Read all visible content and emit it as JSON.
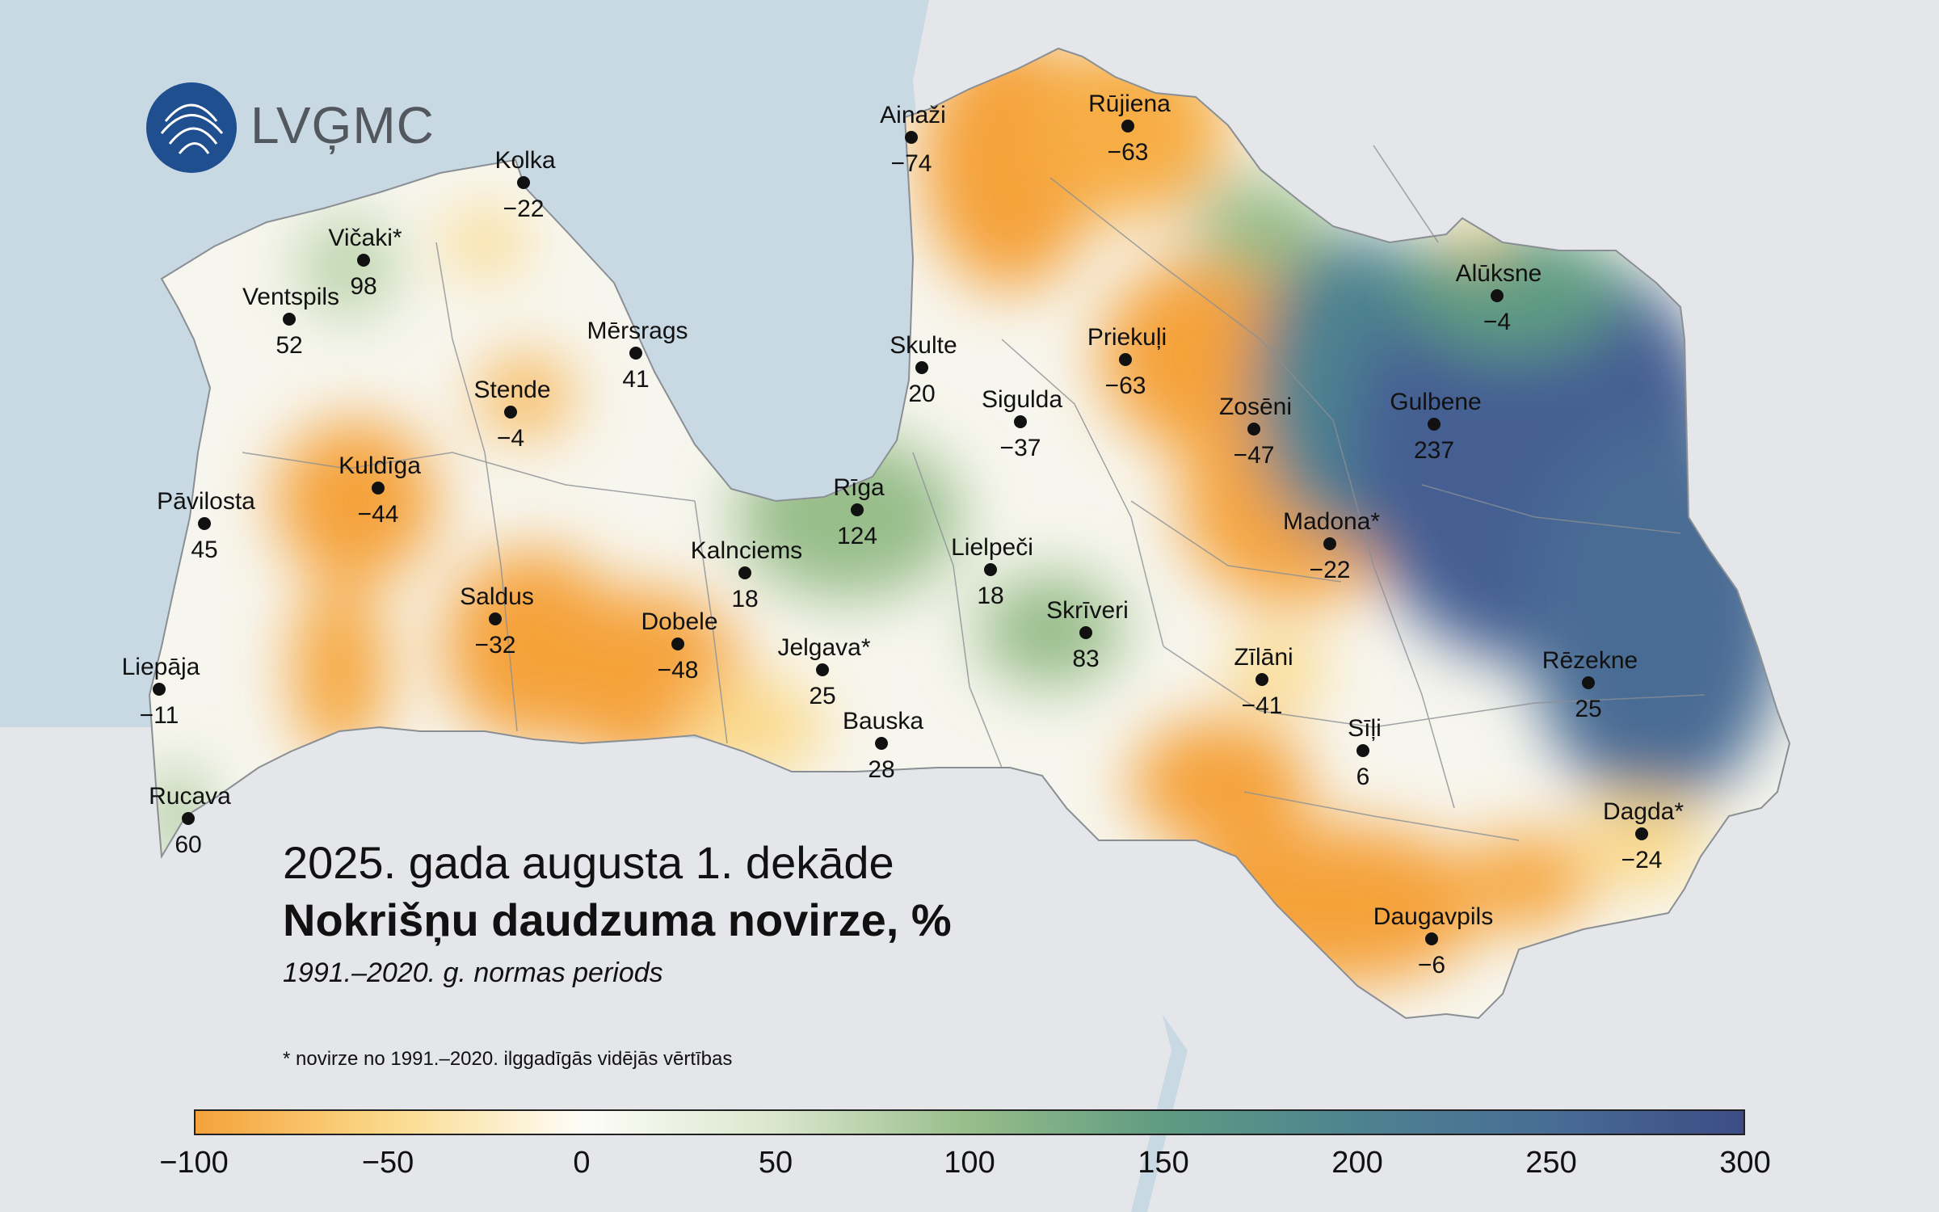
{
  "logo": {
    "text": "LVĢMC",
    "icon": "lvgmc-swirl-logo"
  },
  "title": {
    "line1": "2025. gada augusta 1. dekāde",
    "line2": "Nokrišņu daudzuma novirze, %",
    "line3": "1991.–2020. g. normas periods"
  },
  "footnote": "* novirze no 1991.–2020. ilggadīgās vidējās vērtības",
  "legend": {
    "ticks": [
      "−100",
      "−50",
      "0",
      "50",
      "100",
      "150",
      "200",
      "250",
      "300"
    ],
    "colors": [
      "#f5a23a",
      "#fbd98a",
      "#fdfdf8",
      "#d9e6cc",
      "#97bd8a",
      "#5f9b82",
      "#4e8290",
      "#486d95",
      "#3d4c86"
    ]
  },
  "stations": [
    {
      "name": "Kolka",
      "value": "−22"
    },
    {
      "name": "Ainaži",
      "value": "−74"
    },
    {
      "name": "Rūjiena",
      "value": "−63"
    },
    {
      "name": "Vičaki*",
      "value": "98"
    },
    {
      "name": "Ventspils",
      "value": "52"
    },
    {
      "name": "Mērsrags",
      "value": "41"
    },
    {
      "name": "Skulte",
      "value": "20"
    },
    {
      "name": "Priekuļi",
      "value": "−63"
    },
    {
      "name": "Alūksne",
      "value": "−4"
    },
    {
      "name": "Stende",
      "value": "−4"
    },
    {
      "name": "Sigulda",
      "value": "−37"
    },
    {
      "name": "Zosēni",
      "value": "−47"
    },
    {
      "name": "Gulbene",
      "value": "237"
    },
    {
      "name": "Kuldīga",
      "value": "−44"
    },
    {
      "name": "Pāvilosta",
      "value": "45"
    },
    {
      "name": "Rīga",
      "value": "124"
    },
    {
      "name": "Madona*",
      "value": "−22"
    },
    {
      "name": "Kalnciems",
      "value": "18"
    },
    {
      "name": "Lielpeči",
      "value": "18"
    },
    {
      "name": "Saldus",
      "value": "−32"
    },
    {
      "name": "Dobele",
      "value": "−48"
    },
    {
      "name": "Skrīveri",
      "value": "83"
    },
    {
      "name": "Jelgava*",
      "value": "25"
    },
    {
      "name": "Zīlāni",
      "value": "−41"
    },
    {
      "name": "Rēzekne",
      "value": "25"
    },
    {
      "name": "Liepāja",
      "value": "−11"
    },
    {
      "name": "Bauska",
      "value": "28"
    },
    {
      "name": "Sīļi",
      "value": "6"
    },
    {
      "name": "Rucava",
      "value": "60"
    },
    {
      "name": "Dagda*",
      "value": "−24"
    },
    {
      "name": "Daugavpils",
      "value": "−6"
    }
  ]
}
